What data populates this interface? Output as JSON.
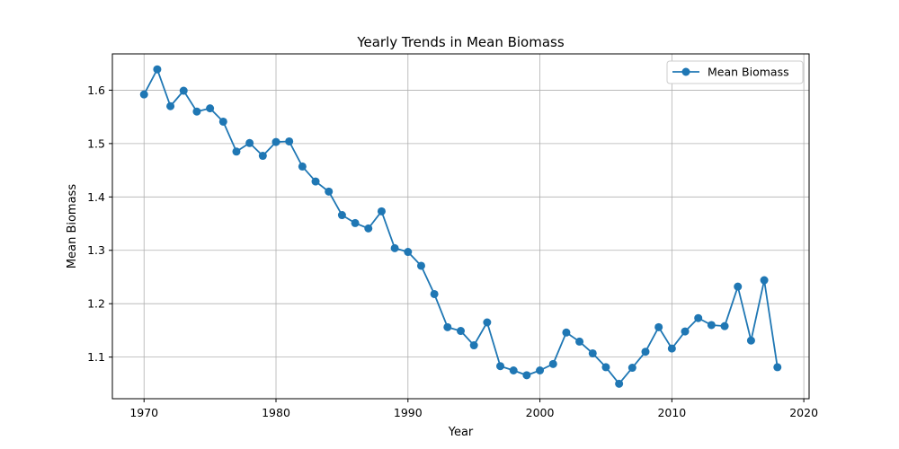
{
  "chart_data": {
    "type": "line",
    "title": "Yearly Trends in Mean Biomass",
    "xlabel": "Year",
    "ylabel": "Mean Biomass",
    "xlim": [
      1967.6,
      2020.4
    ],
    "ylim": [
      1.022,
      1.668
    ],
    "xticks": [
      1970,
      1980,
      1990,
      2000,
      2010,
      2020
    ],
    "yticks": [
      1.1,
      1.2,
      1.3,
      1.4,
      1.5,
      1.6
    ],
    "grid": true,
    "legend_position": "top-right",
    "color": "#1f77b4",
    "series": [
      {
        "name": "Mean Biomass",
        "x": [
          1970,
          1971,
          1972,
          1973,
          1974,
          1975,
          1976,
          1977,
          1978,
          1979,
          1980,
          1981,
          1982,
          1983,
          1984,
          1985,
          1986,
          1987,
          1988,
          1989,
          1990,
          1991,
          1992,
          1993,
          1994,
          1995,
          1996,
          1997,
          1998,
          1999,
          2000,
          2001,
          2002,
          2003,
          2004,
          2005,
          2006,
          2007,
          2008,
          2009,
          2010,
          2011,
          2012,
          2013,
          2014,
          2015,
          2016,
          2017,
          2018
        ],
        "y": [
          1.592,
          1.639,
          1.57,
          1.599,
          1.56,
          1.566,
          1.541,
          1.485,
          1.501,
          1.477,
          1.503,
          1.504,
          1.457,
          1.429,
          1.41,
          1.366,
          1.351,
          1.341,
          1.373,
          1.304,
          1.297,
          1.271,
          1.218,
          1.156,
          1.149,
          1.122,
          1.165,
          1.083,
          1.075,
          1.066,
          1.075,
          1.087,
          1.146,
          1.129,
          1.107,
          1.081,
          1.05,
          1.08,
          1.11,
          1.156,
          1.116,
          1.148,
          1.173,
          1.16,
          1.158,
          1.232,
          1.131,
          1.244,
          1.081
        ]
      }
    ]
  }
}
